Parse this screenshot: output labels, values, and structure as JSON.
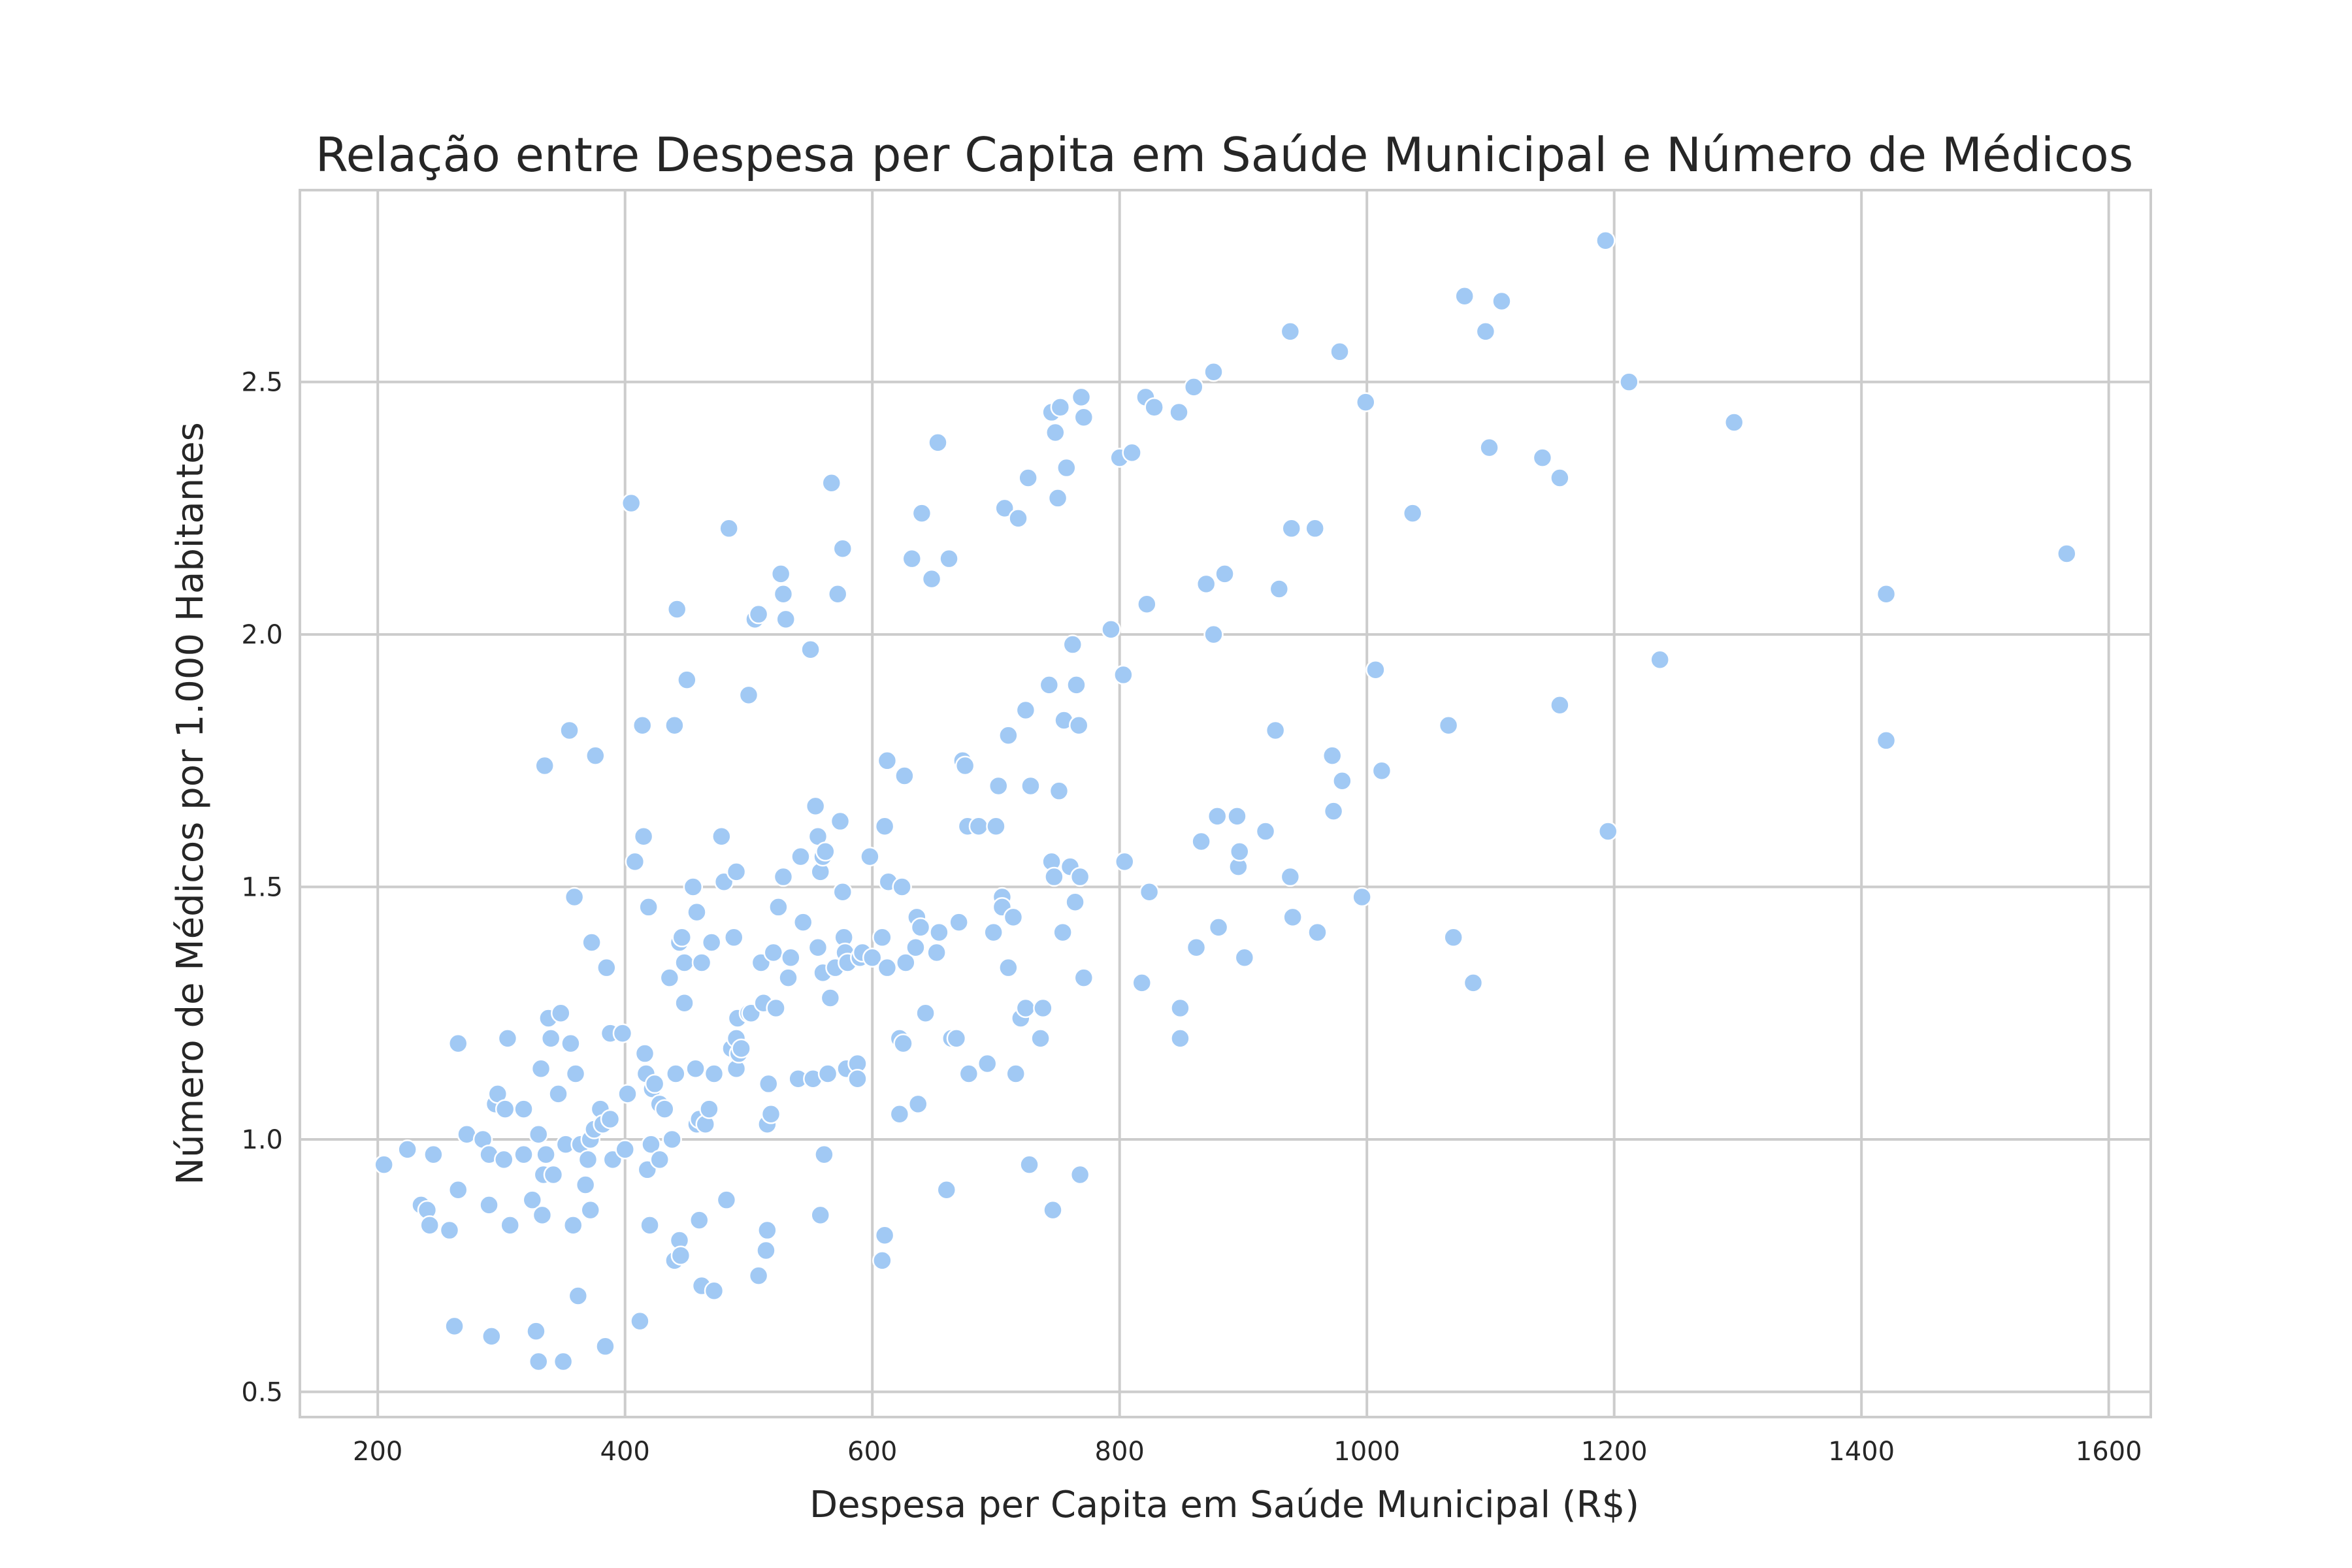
{
  "chart_data": {
    "type": "scatter",
    "title": "Relação entre Despesa per Capita em Saúde Municipal e Número de Médicos",
    "xlabel": "Despesa per Capita em Saúde Municipal (R$)",
    "ylabel": "Número de Médicos por 1.000 Habitantes",
    "xlim": [
      137,
      1634
    ],
    "ylim": [
      0.45,
      2.88
    ],
    "xticks": [
      200,
      400,
      600,
      800,
      1000,
      1200,
      1400,
      1600
    ],
    "yticks": [
      0.5,
      1.0,
      1.5,
      2.0,
      2.5
    ],
    "xtick_labels": [
      "200",
      "400",
      "600",
      "800",
      "1000",
      "1200",
      "1400",
      "1600"
    ],
    "ytick_labels": [
      "0.5",
      "1.0",
      "1.5",
      "2.0",
      "2.5"
    ],
    "grid": true,
    "point_color": "#a1c9f4",
    "points": [
      [
        205,
        0.95
      ],
      [
        224,
        0.98
      ],
      [
        235,
        0.87
      ],
      [
        240,
        0.86
      ],
      [
        242,
        0.83
      ],
      [
        245,
        0.97
      ],
      [
        258,
        0.82
      ],
      [
        262,
        0.63
      ],
      [
        265,
        0.9
      ],
      [
        265,
        1.19
      ],
      [
        272,
        1.01
      ],
      [
        285,
        1.0
      ],
      [
        290,
        0.97
      ],
      [
        290,
        0.87
      ],
      [
        292,
        0.61
      ],
      [
        295,
        1.07
      ],
      [
        297,
        1.09
      ],
      [
        302,
        0.96
      ],
      [
        303,
        1.06
      ],
      [
        305,
        1.2
      ],
      [
        307,
        0.83
      ],
      [
        318,
        1.06
      ],
      [
        318,
        0.97
      ],
      [
        325,
        0.88
      ],
      [
        328,
        0.62
      ],
      [
        330,
        0.56
      ],
      [
        330,
        1.01
      ],
      [
        332,
        1.14
      ],
      [
        333,
        0.85
      ],
      [
        334,
        0.93
      ],
      [
        335,
        1.74
      ],
      [
        336,
        0.97
      ],
      [
        338,
        1.24
      ],
      [
        340,
        1.2
      ],
      [
        342,
        0.93
      ],
      [
        346,
        1.09
      ],
      [
        348,
        1.25
      ],
      [
        350,
        0.56
      ],
      [
        352,
        0.99
      ],
      [
        355,
        1.81
      ],
      [
        356,
        1.19
      ],
      [
        358,
        0.83
      ],
      [
        359,
        1.48
      ],
      [
        360,
        1.13
      ],
      [
        362,
        0.69
      ],
      [
        364,
        0.99
      ],
      [
        368,
        0.91
      ],
      [
        370,
        0.96
      ],
      [
        372,
        1.0
      ],
      [
        372,
        0.86
      ],
      [
        373,
        1.39
      ],
      [
        375,
        1.02
      ],
      [
        376,
        1.76
      ],
      [
        380,
        1.06
      ],
      [
        382,
        1.03
      ],
      [
        384,
        0.59
      ],
      [
        385,
        1.34
      ],
      [
        388,
        1.21
      ],
      [
        388,
        1.04
      ],
      [
        390,
        0.96
      ],
      [
        398,
        1.21
      ],
      [
        400,
        0.98
      ],
      [
        402,
        1.09
      ],
      [
        405,
        2.26
      ],
      [
        408,
        1.55
      ],
      [
        412,
        0.64
      ],
      [
        414,
        1.82
      ],
      [
        415,
        1.6
      ],
      [
        416,
        1.17
      ],
      [
        417,
        1.13
      ],
      [
        418,
        0.94
      ],
      [
        419,
        1.46
      ],
      [
        420,
        0.83
      ],
      [
        421,
        0.99
      ],
      [
        422,
        1.1
      ],
      [
        424,
        1.11
      ],
      [
        428,
        0.96
      ],
      [
        428,
        1.07
      ],
      [
        432,
        1.06
      ],
      [
        436,
        1.32
      ],
      [
        438,
        1.0
      ],
      [
        440,
        0.76
      ],
      [
        440,
        1.82
      ],
      [
        441,
        1.13
      ],
      [
        442,
        2.05
      ],
      [
        444,
        0.8
      ],
      [
        444,
        1.39
      ],
      [
        445,
        0.77
      ],
      [
        446,
        1.4
      ],
      [
        448,
        1.27
      ],
      [
        448,
        1.35
      ],
      [
        450,
        1.91
      ],
      [
        455,
        1.5
      ],
      [
        457,
        1.14
      ],
      [
        458,
        1.45
      ],
      [
        458,
        1.03
      ],
      [
        460,
        1.04
      ],
      [
        460,
        0.84
      ],
      [
        462,
        0.71
      ],
      [
        462,
        1.35
      ],
      [
        465,
        1.03
      ],
      [
        468,
        1.06
      ],
      [
        470,
        1.39
      ],
      [
        472,
        0.7
      ],
      [
        472,
        1.13
      ],
      [
        478,
        1.6
      ],
      [
        480,
        1.51
      ],
      [
        482,
        0.88
      ],
      [
        484,
        2.21
      ],
      [
        486,
        1.18
      ],
      [
        488,
        1.4
      ],
      [
        490,
        1.2
      ],
      [
        490,
        1.53
      ],
      [
        490,
        1.14
      ],
      [
        491,
        1.24
      ],
      [
        492,
        1.17
      ],
      [
        494,
        1.18
      ],
      [
        500,
        1.88
      ],
      [
        500,
        1.25
      ],
      [
        502,
        1.25
      ],
      [
        505,
        2.03
      ],
      [
        508,
        2.04
      ],
      [
        508,
        0.73
      ],
      [
        510,
        1.35
      ],
      [
        512,
        1.27
      ],
      [
        514,
        0.78
      ],
      [
        515,
        0.82
      ],
      [
        515,
        1.03
      ],
      [
        516,
        1.11
      ],
      [
        518,
        1.05
      ],
      [
        520,
        1.37
      ],
      [
        522,
        1.26
      ],
      [
        524,
        1.46
      ],
      [
        526,
        2.12
      ],
      [
        528,
        2.08
      ],
      [
        528,
        1.52
      ],
      [
        530,
        2.03
      ],
      [
        532,
        1.32
      ],
      [
        534,
        1.36
      ],
      [
        540,
        1.12
      ],
      [
        542,
        1.56
      ],
      [
        544,
        1.43
      ],
      [
        550,
        1.97
      ],
      [
        552,
        1.12
      ],
      [
        554,
        1.66
      ],
      [
        556,
        1.6
      ],
      [
        556,
        1.38
      ],
      [
        558,
        1.53
      ],
      [
        558,
        0.85
      ],
      [
        560,
        1.56
      ],
      [
        560,
        1.33
      ],
      [
        561,
        0.97
      ],
      [
        562,
        1.57
      ],
      [
        564,
        1.13
      ],
      [
        566,
        1.28
      ],
      [
        567,
        2.3
      ],
      [
        570,
        1.34
      ],
      [
        572,
        2.08
      ],
      [
        574,
        1.63
      ],
      [
        576,
        2.17
      ],
      [
        576,
        1.49
      ],
      [
        577,
        1.4
      ],
      [
        578,
        1.37
      ],
      [
        579,
        1.14
      ],
      [
        580,
        1.35
      ],
      [
        588,
        1.15
      ],
      [
        588,
        1.12
      ],
      [
        590,
        1.36
      ],
      [
        592,
        1.37
      ],
      [
        598,
        1.56
      ],
      [
        600,
        1.36
      ],
      [
        608,
        1.4
      ],
      [
        608,
        0.76
      ],
      [
        610,
        1.62
      ],
      [
        610,
        0.81
      ],
      [
        612,
        1.34
      ],
      [
        612,
        1.75
      ],
      [
        613,
        1.51
      ],
      [
        622,
        1.2
      ],
      [
        622,
        1.05
      ],
      [
        624,
        1.5
      ],
      [
        625,
        1.19
      ],
      [
        626,
        1.72
      ],
      [
        627,
        1.35
      ],
      [
        632,
        2.15
      ],
      [
        635,
        1.38
      ],
      [
        636,
        1.44
      ],
      [
        637,
        1.07
      ],
      [
        639,
        1.42
      ],
      [
        640,
        2.24
      ],
      [
        643,
        1.25
      ],
      [
        648,
        2.11
      ],
      [
        653,
        2.38
      ],
      [
        654,
        1.41
      ],
      [
        652,
        1.37
      ],
      [
        660,
        0.9
      ],
      [
        662,
        2.15
      ],
      [
        664,
        1.2
      ],
      [
        668,
        1.2
      ],
      [
        670,
        1.43
      ],
      [
        673,
        1.75
      ],
      [
        675,
        1.74
      ],
      [
        677,
        1.62
      ],
      [
        678,
        1.13
      ],
      [
        686,
        1.62
      ],
      [
        693,
        1.15
      ],
      [
        698,
        1.41
      ],
      [
        700,
        1.62
      ],
      [
        702,
        1.7
      ],
      [
        705,
        1.48
      ],
      [
        705,
        1.46
      ],
      [
        707,
        2.25
      ],
      [
        710,
        1.8
      ],
      [
        710,
        1.34
      ],
      [
        714,
        1.44
      ],
      [
        716,
        1.13
      ],
      [
        718,
        2.23
      ],
      [
        720,
        1.24
      ],
      [
        724,
        1.26
      ],
      [
        724,
        1.85
      ],
      [
        726,
        2.31
      ],
      [
        727,
        0.95
      ],
      [
        728,
        1.7
      ],
      [
        736,
        1.2
      ],
      [
        738,
        1.26
      ],
      [
        743,
        1.9
      ],
      [
        745,
        2.44
      ],
      [
        745,
        1.55
      ],
      [
        746,
        0.86
      ],
      [
        747,
        1.52
      ],
      [
        748,
        2.4
      ],
      [
        750,
        2.27
      ],
      [
        751,
        1.69
      ],
      [
        752,
        2.45
      ],
      [
        754,
        1.41
      ],
      [
        755,
        1.83
      ],
      [
        757,
        2.33
      ],
      [
        760,
        1.54
      ],
      [
        762,
        1.98
      ],
      [
        764,
        1.47
      ],
      [
        765,
        1.9
      ],
      [
        767,
        1.82
      ],
      [
        768,
        0.93
      ],
      [
        768,
        1.52
      ],
      [
        769,
        2.47
      ],
      [
        771,
        2.43
      ],
      [
        771,
        1.32
      ],
      [
        793,
        2.01
      ],
      [
        800,
        2.35
      ],
      [
        803,
        1.92
      ],
      [
        804,
        1.55
      ],
      [
        810,
        2.36
      ],
      [
        818,
        1.31
      ],
      [
        821,
        2.47
      ],
      [
        822,
        2.06
      ],
      [
        824,
        1.49
      ],
      [
        828,
        2.45
      ],
      [
        848,
        2.44
      ],
      [
        849,
        1.26
      ],
      [
        849,
        1.2
      ],
      [
        860,
        2.49
      ],
      [
        862,
        1.38
      ],
      [
        866,
        1.59
      ],
      [
        870,
        2.1
      ],
      [
        876,
        2.52
      ],
      [
        876,
        2.0
      ],
      [
        879,
        1.64
      ],
      [
        880,
        1.42
      ],
      [
        885,
        2.12
      ],
      [
        895,
        1.64
      ],
      [
        896,
        1.54
      ],
      [
        897,
        1.57
      ],
      [
        901,
        1.36
      ],
      [
        918,
        1.61
      ],
      [
        926,
        1.81
      ],
      [
        929,
        2.09
      ],
      [
        938,
        2.6
      ],
      [
        938,
        1.52
      ],
      [
        939,
        2.21
      ],
      [
        940,
        1.44
      ],
      [
        958,
        2.21
      ],
      [
        960,
        1.41
      ],
      [
        972,
        1.76
      ],
      [
        973,
        1.65
      ],
      [
        978,
        2.56
      ],
      [
        980,
        1.71
      ],
      [
        996,
        1.48
      ],
      [
        999,
        2.46
      ],
      [
        1007,
        1.93
      ],
      [
        1012,
        1.73
      ],
      [
        1037,
        2.24
      ],
      [
        1066,
        1.82
      ],
      [
        1070,
        1.4
      ],
      [
        1079,
        2.67
      ],
      [
        1086,
        1.31
      ],
      [
        1096,
        2.6
      ],
      [
        1099,
        2.37
      ],
      [
        1109,
        2.66
      ],
      [
        1142,
        2.35
      ],
      [
        1156,
        2.31
      ],
      [
        1156,
        1.86
      ],
      [
        1193,
        2.78
      ],
      [
        1195,
        1.61
      ],
      [
        1212,
        2.5
      ],
      [
        1237,
        1.95
      ],
      [
        1297,
        2.42
      ],
      [
        1420,
        2.08
      ],
      [
        1420,
        1.79
      ],
      [
        1566,
        2.16
      ]
    ]
  }
}
